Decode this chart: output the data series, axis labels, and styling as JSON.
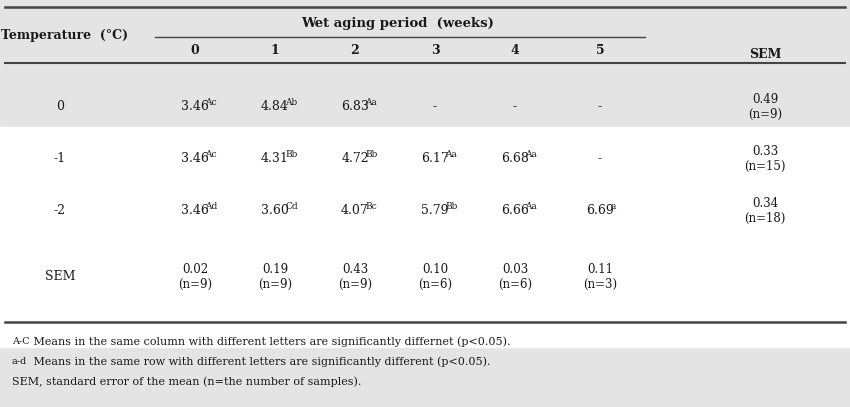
{
  "title": "Wet aging period  (weeks)",
  "temp_header": "Temperature  (°C)",
  "col_header_weeks": [
    "0",
    "1",
    "2",
    "3",
    "4",
    "5"
  ],
  "col_sem": "SEM",
  "rows": [
    {
      "temp": "0",
      "values": [
        [
          "3.46",
          "Ac"
        ],
        [
          "4.84",
          "Ab"
        ],
        [
          "6.83",
          "Aa"
        ],
        [
          "-",
          ""
        ],
        [
          "-",
          ""
        ],
        [
          "-",
          ""
        ]
      ],
      "sem": "0.49\n(n=9)"
    },
    {
      "temp": "-1",
      "values": [
        [
          "3.46",
          "Ac"
        ],
        [
          "4.31",
          "Bb"
        ],
        [
          "4.72",
          "Bb"
        ],
        [
          "6.17",
          "Aa"
        ],
        [
          "6.68",
          "Aa"
        ],
        [
          "-",
          ""
        ]
      ],
      "sem": "0.33\n(n=15)"
    },
    {
      "temp": "-2",
      "values": [
        [
          "3.46",
          "Ad"
        ],
        [
          "3.60",
          "Cd"
        ],
        [
          "4.07",
          "Bc"
        ],
        [
          "5.79",
          "Bb"
        ],
        [
          "6.66",
          "Aa"
        ],
        [
          "6.69",
          "a"
        ]
      ],
      "sem": "0.34\n(n=18)"
    },
    {
      "temp": "SEM",
      "values": [
        [
          "0.02\n(n=9)",
          ""
        ],
        [
          "0.19\n(n=9)",
          ""
        ],
        [
          "0.43\n(n=9)",
          ""
        ],
        [
          "0.10\n(n=6)",
          ""
        ],
        [
          "0.03\n(n=6)",
          ""
        ],
        [
          "0.11\n(n=3)",
          ""
        ]
      ],
      "sem": ""
    }
  ],
  "footnote_ac": "A-C",
  "footnote_ad": "a-d",
  "footnote1": " Means in the same column with different letters are significantly differnet (p<0.05).",
  "footnote2": " Means in the same row with different letters are significantly different (p<0.05).",
  "footnote3": "SEM, standard error of the mean (n=the number of samples).",
  "bg_color": "#e4e4e4",
  "body_bg": "#ffffff",
  "text_color": "#1a1a1a",
  "font_size": 9.0,
  "sup_font_size": 6.5,
  "table_font": "DejaVu Serif"
}
